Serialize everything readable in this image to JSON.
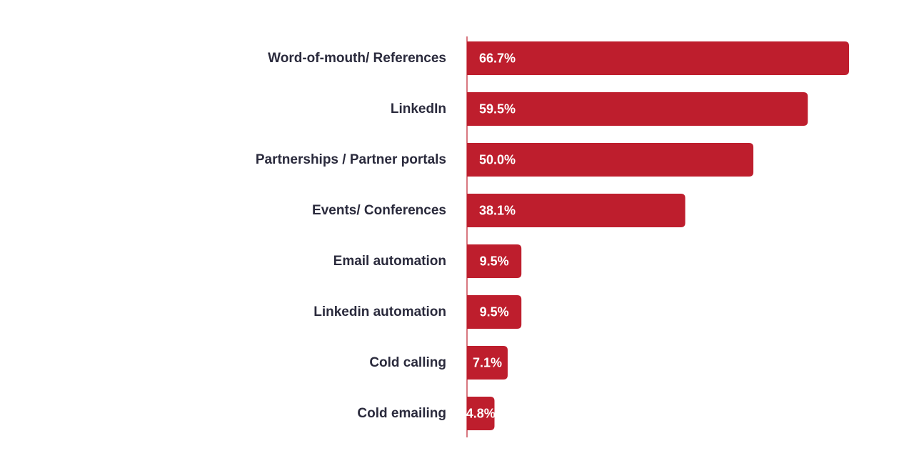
{
  "chart_data": {
    "type": "bar",
    "orientation": "horizontal",
    "categories": [
      "Word-of-mouth/ References",
      "LinkedIn",
      "Partnerships / Partner portals",
      "Events/ Conferences",
      "Email automation",
      "Linkedin automation",
      "Cold calling",
      "Cold emailing"
    ],
    "values": [
      66.7,
      59.5,
      50.0,
      38.1,
      9.5,
      9.5,
      7.1,
      4.8
    ],
    "value_labels": [
      "66.7%",
      "59.5%",
      "50.0%",
      "38.1%",
      "9.5%",
      "9.5%",
      "7.1%",
      "4.8%"
    ],
    "unit": "%",
    "title": "",
    "xlabel": "",
    "ylabel": "",
    "grid": false,
    "legend": "none",
    "bar_color": "#be1e2d",
    "axis_color": "#be1e2d",
    "label_color": "#2a2a3c",
    "value_label_color": "#ffffff"
  }
}
